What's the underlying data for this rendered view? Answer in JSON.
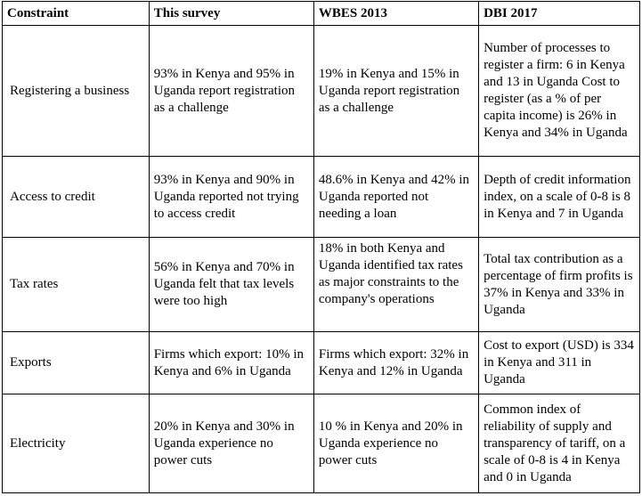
{
  "headers": [
    "Constraint",
    "This survey",
    "WBES 2013",
    "DBI 2017"
  ],
  "rows": [
    {
      "constraint": "Registering a business",
      "survey": "93% in Kenya and 95% in Uganda report registration as a challenge",
      "wbes": "19% in Kenya and 15% in Uganda report registration as a challenge",
      "dbi": "Number of processes to register a firm: 6 in Kenya and 13 in Uganda Cost to register (as a % of per capita income) is 26% in Kenya and 34% in Uganda"
    },
    {
      "constraint": "Access to credit",
      "survey": "93% in Kenya and 90% in Uganda reported not trying to access credit",
      "wbes": "48.6% in Kenya and 42% in Uganda reported not needing a loan",
      "dbi": "Depth of credit information index, on a scale of 0-8 is 8 in Kenya and 7 in Uganda"
    },
    {
      "constraint": "Tax rates",
      "survey": "56% in Kenya and 70% in Uganda felt that tax levels were too high",
      "wbes": "18% in both Kenya and Uganda identified tax rates as major constraints to the company's operations",
      "dbi": "Total tax contribution as a percentage of firm profits is 37% in Kenya and 33% in Uganda"
    },
    {
      "constraint": "Exports",
      "survey": "Firms which export: 10% in Kenya and 6% in Uganda",
      "wbes": "Firms which export: 32% in Kenya and 12% in Uganda",
      "dbi": "Cost to export (USD) is 334 in Kenya and 311 in Uganda"
    },
    {
      "constraint": "Electricity",
      "survey": "20% in Kenya and 30% in Uganda experience no power cuts",
      "wbes": "10 % in Kenya and 20% in Uganda experience no power cuts",
      "dbi": "Common index of reliability of supply and transparency of tariff, on a scale of 0-8 is 4 in Kenya and 0 in Uganda"
    }
  ]
}
